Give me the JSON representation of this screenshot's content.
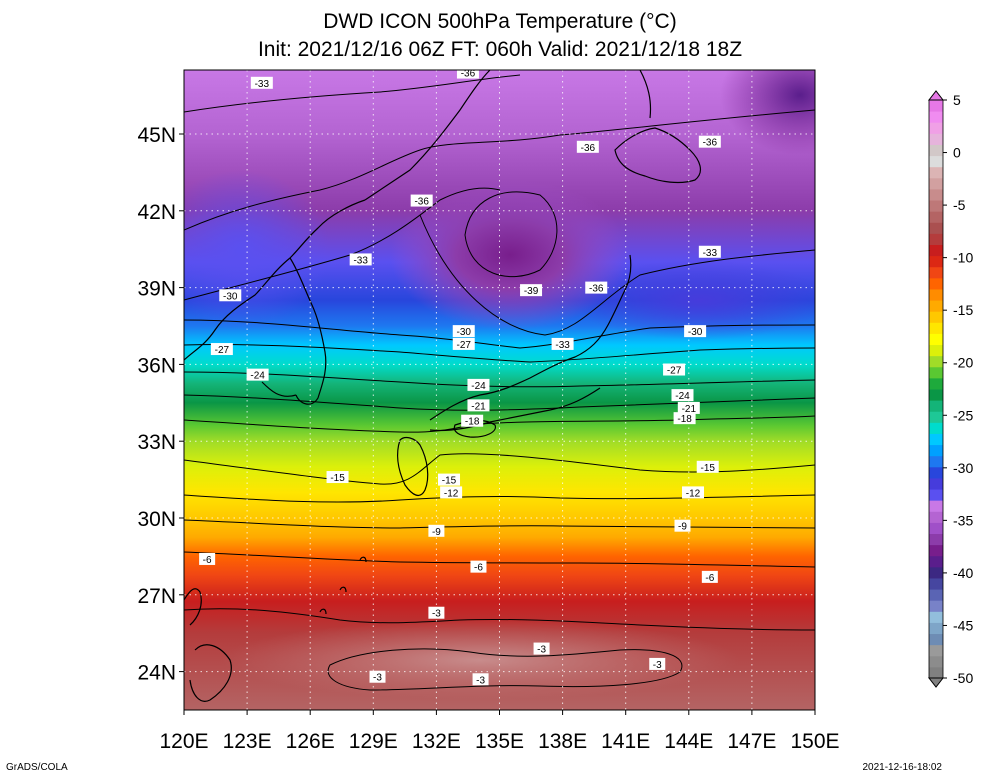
{
  "title_line1": "DWD ICON 500hPa Temperature (°C)",
  "title_line2": "Init: 2021/12/16 06Z  FT: 060h  Valid: 2021/12/18 18Z",
  "footer_left": "GrADS/COLA",
  "footer_right": "2021-12-16-18:02",
  "map": {
    "type": "heatmap",
    "lon_range": [
      120,
      150
    ],
    "lat_range": [
      22.5,
      47.5
    ],
    "x_ticks": [
      "120E",
      "123E",
      "126E",
      "129E",
      "132E",
      "135E",
      "138E",
      "141E",
      "144E",
      "147E",
      "150E"
    ],
    "y_ticks": [
      "24N",
      "27N",
      "30N",
      "33N",
      "36N",
      "39N",
      "42N",
      "45N"
    ],
    "x_tick_values": [
      120,
      123,
      126,
      129,
      132,
      135,
      138,
      141,
      144,
      147,
      150
    ],
    "y_tick_values": [
      24,
      27,
      30,
      33,
      36,
      39,
      42,
      45
    ],
    "grid": true,
    "coastlines": true
  },
  "colorbar": {
    "labels": [
      "5",
      "0",
      "-5",
      "-10",
      "-15",
      "-20",
      "-25",
      "-30",
      "-35",
      "-40",
      "-45",
      "-50"
    ],
    "min": -50,
    "max": 5,
    "colors": [
      "#808080",
      "#8c8c8c",
      "#9a9a9a",
      "#6e8cb4",
      "#7ea5c8",
      "#92bedc",
      "#7882c8",
      "#5a64b4",
      "#4646a0",
      "#3c2882",
      "#5a1e8c",
      "#781e8c",
      "#8c3caa",
      "#a050c8",
      "#b464d2",
      "#c878e6",
      "#5a50f0",
      "#463cdc",
      "#2846dc",
      "#1e78f0",
      "#00a0ff",
      "#00c8ff",
      "#00dccc",
      "#1ec896",
      "#14b478",
      "#0a9646",
      "#1eaa3c",
      "#5ac832",
      "#a0dc28",
      "#dcf00a",
      "#ffff00",
      "#ffe600",
      "#ffc800",
      "#ffaa00",
      "#ff8c00",
      "#ff6400",
      "#f04614",
      "#dc2814",
      "#c81e1e",
      "#b43c3c",
      "#aa5050",
      "#b46464",
      "#be7878",
      "#c88c8c",
      "#d2a0a0",
      "#dcb4b4",
      "#dcdcdc",
      "#d2c8c8",
      "#e6b4dc",
      "#f0a0e6",
      "#f08cf0",
      "#e678e6"
    ]
  },
  "contour_labels": [
    {
      "t": "-36",
      "lon": 133.5,
      "lat": 47.4
    },
    {
      "t": "-33",
      "lon": 123.7,
      "lat": 47.0
    },
    {
      "t": "-36",
      "lon": 139.2,
      "lat": 44.5
    },
    {
      "t": "-36",
      "lon": 145.0,
      "lat": 44.7
    },
    {
      "t": "-36",
      "lon": 131.3,
      "lat": 42.4
    },
    {
      "t": "-33",
      "lon": 128.4,
      "lat": 40.1
    },
    {
      "t": "-33",
      "lon": 145.0,
      "lat": 40.4
    },
    {
      "t": "-30",
      "lon": 122.2,
      "lat": 38.7
    },
    {
      "t": "-39",
      "lon": 136.5,
      "lat": 38.9
    },
    {
      "t": "-36",
      "lon": 139.6,
      "lat": 39.0
    },
    {
      "t": "-30",
      "lon": 133.3,
      "lat": 37.3
    },
    {
      "t": "-27",
      "lon": 133.3,
      "lat": 36.8
    },
    {
      "t": "-33",
      "lon": 138.0,
      "lat": 36.8
    },
    {
      "t": "-30",
      "lon": 144.3,
      "lat": 37.3
    },
    {
      "t": "-27",
      "lon": 121.8,
      "lat": 36.6
    },
    {
      "t": "-27",
      "lon": 143.3,
      "lat": 35.8
    },
    {
      "t": "-24",
      "lon": 123.5,
      "lat": 35.6
    },
    {
      "t": "-24",
      "lon": 134.0,
      "lat": 35.2
    },
    {
      "t": "-24",
      "lon": 143.7,
      "lat": 34.8
    },
    {
      "t": "-21",
      "lon": 134.0,
      "lat": 34.4
    },
    {
      "t": "-21",
      "lon": 144.0,
      "lat": 34.3
    },
    {
      "t": "-18",
      "lon": 133.7,
      "lat": 33.8
    },
    {
      "t": "-18",
      "lon": 143.8,
      "lat": 33.9
    },
    {
      "t": "-15",
      "lon": 127.3,
      "lat": 31.6
    },
    {
      "t": "-15",
      "lon": 132.6,
      "lat": 31.5
    },
    {
      "t": "-15",
      "lon": 144.9,
      "lat": 32.0
    },
    {
      "t": "-12",
      "lon": 132.7,
      "lat": 31.0
    },
    {
      "t": "-12",
      "lon": 144.2,
      "lat": 31.0
    },
    {
      "t": "-9",
      "lon": 132.0,
      "lat": 29.5
    },
    {
      "t": "-9",
      "lon": 143.7,
      "lat": 29.7
    },
    {
      "t": "-6",
      "lon": 121.1,
      "lat": 28.4
    },
    {
      "t": "-6",
      "lon": 134.0,
      "lat": 28.1
    },
    {
      "t": "-6",
      "lon": 145.0,
      "lat": 27.7
    },
    {
      "t": "-3",
      "lon": 132.0,
      "lat": 26.3
    },
    {
      "t": "-3",
      "lon": 137.0,
      "lat": 24.9
    },
    {
      "t": "-3",
      "lon": 142.5,
      "lat": 24.3
    },
    {
      "t": "-3",
      "lon": 129.2,
      "lat": 23.8
    },
    {
      "t": "-3",
      "lon": 134.1,
      "lat": 23.7
    }
  ]
}
